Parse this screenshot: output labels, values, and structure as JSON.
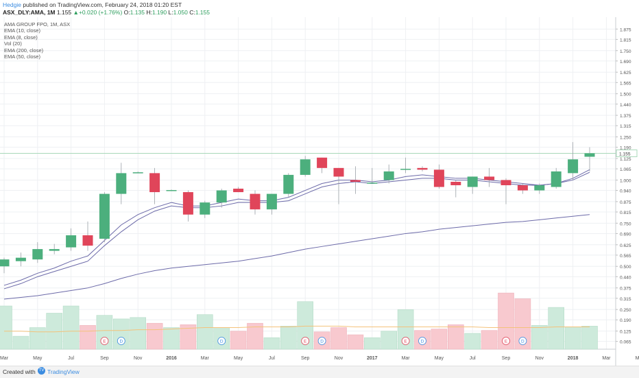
{
  "header": {
    "author": "Hedgie",
    "published_text": "published on TradingView.com, February 24, 2018 01:20 EST",
    "symbol": "ASX_DLY:AMA, 1M",
    "price": "1.155",
    "change": "+0.020 (+1.76%)",
    "ohlc": [
      {
        "label": "O:",
        "value": "1.135"
      },
      {
        "label": "H:",
        "value": "1.190"
      },
      {
        "label": "L:",
        "value": "1.050"
      },
      {
        "label": "C:",
        "value": "1.155"
      }
    ]
  },
  "legend": [
    "AMA GROUP FPO, 1M, ASX",
    "EMA (10, close)",
    "EMA (8, close)",
    "Vol (20)",
    "EMA (200, close)",
    "EMA (50, close)"
  ],
  "footer": {
    "created_with": "Created with",
    "brand": "TradingView"
  },
  "colors": {
    "up": "#4caf7d",
    "down": "#e0455a",
    "up_volume": "#cdeadb",
    "down_volume": "#f8c9cf",
    "ema": "#6b69a8",
    "volume_ma": "#f4c27a",
    "last_price_line": "#a8d8b9"
  },
  "chart_data": {
    "type": "candlestick",
    "y_axis_ticks": [
      "1.875",
      "1.815",
      "1.750",
      "1.690",
      "1.625",
      "1.565",
      "1.500",
      "1.440",
      "1.375",
      "1.315",
      "1.250",
      "1.190",
      "1.125",
      "1.065",
      "1.000",
      "0.940",
      "0.875",
      "0.815",
      "0.750",
      "0.690",
      "0.625",
      "0.565",
      "0.500",
      "0.440",
      "0.375",
      "0.315",
      "0.250",
      "0.190",
      "0.125",
      "0.065"
    ],
    "ylim": [
      0.02,
      1.92
    ],
    "x_axis_labels": [
      {
        "label": "Mar",
        "month": 0
      },
      {
        "label": "May",
        "month": 2
      },
      {
        "label": "Jul",
        "month": 4
      },
      {
        "label": "Sep",
        "month": 6
      },
      {
        "label": "Nov",
        "month": 8
      },
      {
        "label": "2016",
        "month": 10
      },
      {
        "label": "Mar",
        "month": 12
      },
      {
        "label": "May",
        "month": 14
      },
      {
        "label": "Jul",
        "month": 16
      },
      {
        "label": "Sep",
        "month": 18
      },
      {
        "label": "Nov",
        "month": 20
      },
      {
        "label": "2017",
        "month": 22
      },
      {
        "label": "Mar",
        "month": 24
      },
      {
        "label": "May",
        "month": 26
      },
      {
        "label": "Jul",
        "month": 28
      },
      {
        "label": "Sep",
        "month": 30
      },
      {
        "label": "Nov",
        "month": 32
      },
      {
        "label": "2018",
        "month": 34
      },
      {
        "label": "Mar",
        "month": 36
      },
      {
        "label": "May",
        "month": 38
      }
    ],
    "candles": [
      {
        "o": 0.5,
        "h": 0.55,
        "l": 0.46,
        "c": 0.54
      },
      {
        "o": 0.53,
        "h": 0.58,
        "l": 0.5,
        "c": 0.55
      },
      {
        "o": 0.54,
        "h": 0.64,
        "l": 0.52,
        "c": 0.6
      },
      {
        "o": 0.59,
        "h": 0.63,
        "l": 0.57,
        "c": 0.6
      },
      {
        "o": 0.61,
        "h": 0.72,
        "l": 0.59,
        "c": 0.68
      },
      {
        "o": 0.68,
        "h": 0.76,
        "l": 0.59,
        "c": 0.62
      },
      {
        "o": 0.66,
        "h": 0.93,
        "l": 0.64,
        "c": 0.92
      },
      {
        "o": 0.92,
        "h": 1.1,
        "l": 0.86,
        "c": 1.04
      },
      {
        "o": 1.04,
        "h": 1.05,
        "l": 1.04,
        "c": 1.045
      },
      {
        "o": 1.04,
        "h": 1.07,
        "l": 0.86,
        "c": 0.93
      },
      {
        "o": 0.94,
        "h": 0.945,
        "l": 0.94,
        "c": 0.942
      },
      {
        "o": 0.93,
        "h": 0.94,
        "l": 0.76,
        "c": 0.8
      },
      {
        "o": 0.8,
        "h": 0.88,
        "l": 0.78,
        "c": 0.87
      },
      {
        "o": 0.87,
        "h": 0.95,
        "l": 0.84,
        "c": 0.94
      },
      {
        "o": 0.95,
        "h": 0.96,
        "l": 0.93,
        "c": 0.93
      },
      {
        "o": 0.92,
        "h": 0.94,
        "l": 0.8,
        "c": 0.83
      },
      {
        "o": 0.83,
        "h": 0.92,
        "l": 0.8,
        "c": 0.92
      },
      {
        "o": 0.92,
        "h": 1.04,
        "l": 0.9,
        "c": 1.03
      },
      {
        "o": 1.03,
        "h": 1.14,
        "l": 1.02,
        "c": 1.12
      },
      {
        "o": 1.13,
        "h": 1.13,
        "l": 1.04,
        "c": 1.07
      },
      {
        "o": 1.07,
        "h": 1.07,
        "l": 0.86,
        "c": 1.02
      },
      {
        "o": 1.0,
        "h": 1.08,
        "l": 0.92,
        "c": 0.99
      },
      {
        "o": 0.98,
        "h": 1.07,
        "l": 0.98,
        "c": 0.985
      },
      {
        "o": 1.0,
        "h": 1.09,
        "l": 0.98,
        "c": 1.05
      },
      {
        "o": 1.06,
        "h": 1.13,
        "l": 1.04,
        "c": 1.065
      },
      {
        "o": 1.07,
        "h": 1.08,
        "l": 1.05,
        "c": 1.06
      },
      {
        "o": 1.06,
        "h": 1.09,
        "l": 0.95,
        "c": 0.96
      },
      {
        "o": 0.99,
        "h": 1.0,
        "l": 0.9,
        "c": 0.97
      },
      {
        "o": 0.96,
        "h": 1.02,
        "l": 0.92,
        "c": 1.02
      },
      {
        "o": 1.02,
        "h": 1.07,
        "l": 0.96,
        "c": 1.0
      },
      {
        "o": 1.0,
        "h": 1.01,
        "l": 0.86,
        "c": 0.97
      },
      {
        "o": 0.97,
        "h": 0.98,
        "l": 0.92,
        "c": 0.94
      },
      {
        "o": 0.94,
        "h": 0.98,
        "l": 0.92,
        "c": 0.97
      },
      {
        "o": 0.96,
        "h": 1.07,
        "l": 0.95,
        "c": 1.05
      },
      {
        "o": 1.04,
        "h": 1.22,
        "l": 1.0,
        "c": 1.12
      },
      {
        "o": 1.135,
        "h": 1.19,
        "l": 1.05,
        "c": 1.155
      }
    ],
    "ema_8_10_a": [
      0.39,
      0.42,
      0.46,
      0.49,
      0.53,
      0.56,
      0.65,
      0.74,
      0.8,
      0.84,
      0.87,
      0.85,
      0.85,
      0.87,
      0.89,
      0.88,
      0.88,
      0.9,
      0.94,
      0.98,
      1.0,
      1.0,
      0.99,
      1.0,
      1.02,
      1.03,
      1.02,
      1.01,
      1.01,
      1.0,
      0.99,
      0.98,
      0.97,
      0.98,
      1.01,
      1.06
    ],
    "ema_8_10_b": [
      0.37,
      0.4,
      0.44,
      0.47,
      0.5,
      0.53,
      0.62,
      0.7,
      0.77,
      0.82,
      0.85,
      0.84,
      0.84,
      0.85,
      0.87,
      0.87,
      0.87,
      0.88,
      0.92,
      0.96,
      0.98,
      0.99,
      0.98,
      0.99,
      1.0,
      1.01,
      1.01,
      1.0,
      1.0,
      0.99,
      0.98,
      0.97,
      0.97,
      0.98,
      1.0,
      1.045
    ],
    "ema_long": [
      0.31,
      0.32,
      0.33,
      0.345,
      0.36,
      0.375,
      0.4,
      0.43,
      0.455,
      0.475,
      0.49,
      0.5,
      0.51,
      0.52,
      0.53,
      0.545,
      0.56,
      0.58,
      0.6,
      0.615,
      0.63,
      0.645,
      0.66,
      0.675,
      0.69,
      0.7,
      0.715,
      0.725,
      0.735,
      0.745,
      0.755,
      0.76,
      0.77,
      0.78,
      0.79,
      0.8
    ],
    "volume": [
      0.6,
      0.18,
      0.3,
      0.5,
      0.6,
      0.33,
      0.47,
      0.42,
      0.44,
      0.36,
      0.3,
      0.34,
      0.48,
      0.3,
      0.25,
      0.36,
      0.16,
      0.32,
      0.66,
      0.24,
      0.3,
      0.2,
      0.16,
      0.25,
      0.55,
      0.26,
      0.28,
      0.34,
      0.22,
      0.26,
      0.78,
      0.7,
      0.33,
      0.58,
      0.31,
      0.32
    ],
    "volume_ma": [
      0.25,
      0.25,
      0.24,
      0.24,
      0.25,
      0.25,
      0.26,
      0.26,
      0.27,
      0.27,
      0.28,
      0.29,
      0.3,
      0.3,
      0.3,
      0.31,
      0.31,
      0.31,
      0.32,
      0.32,
      0.32,
      0.31,
      0.31,
      0.31,
      0.31,
      0.31,
      0.31,
      0.31,
      0.31,
      0.3,
      0.3,
      0.3,
      0.3,
      0.31,
      0.31,
      0.31
    ],
    "events": [
      {
        "label": "E",
        "month": 6
      },
      {
        "label": "D",
        "month": 7
      },
      {
        "label": "D",
        "month": 13
      },
      {
        "label": "E",
        "month": 18
      },
      {
        "label": "D",
        "month": 19
      },
      {
        "label": "E",
        "month": 24
      },
      {
        "label": "D",
        "month": 25
      },
      {
        "label": "E",
        "month": 30
      },
      {
        "label": "D",
        "month": 31
      }
    ],
    "last_price_label": "1.155"
  }
}
